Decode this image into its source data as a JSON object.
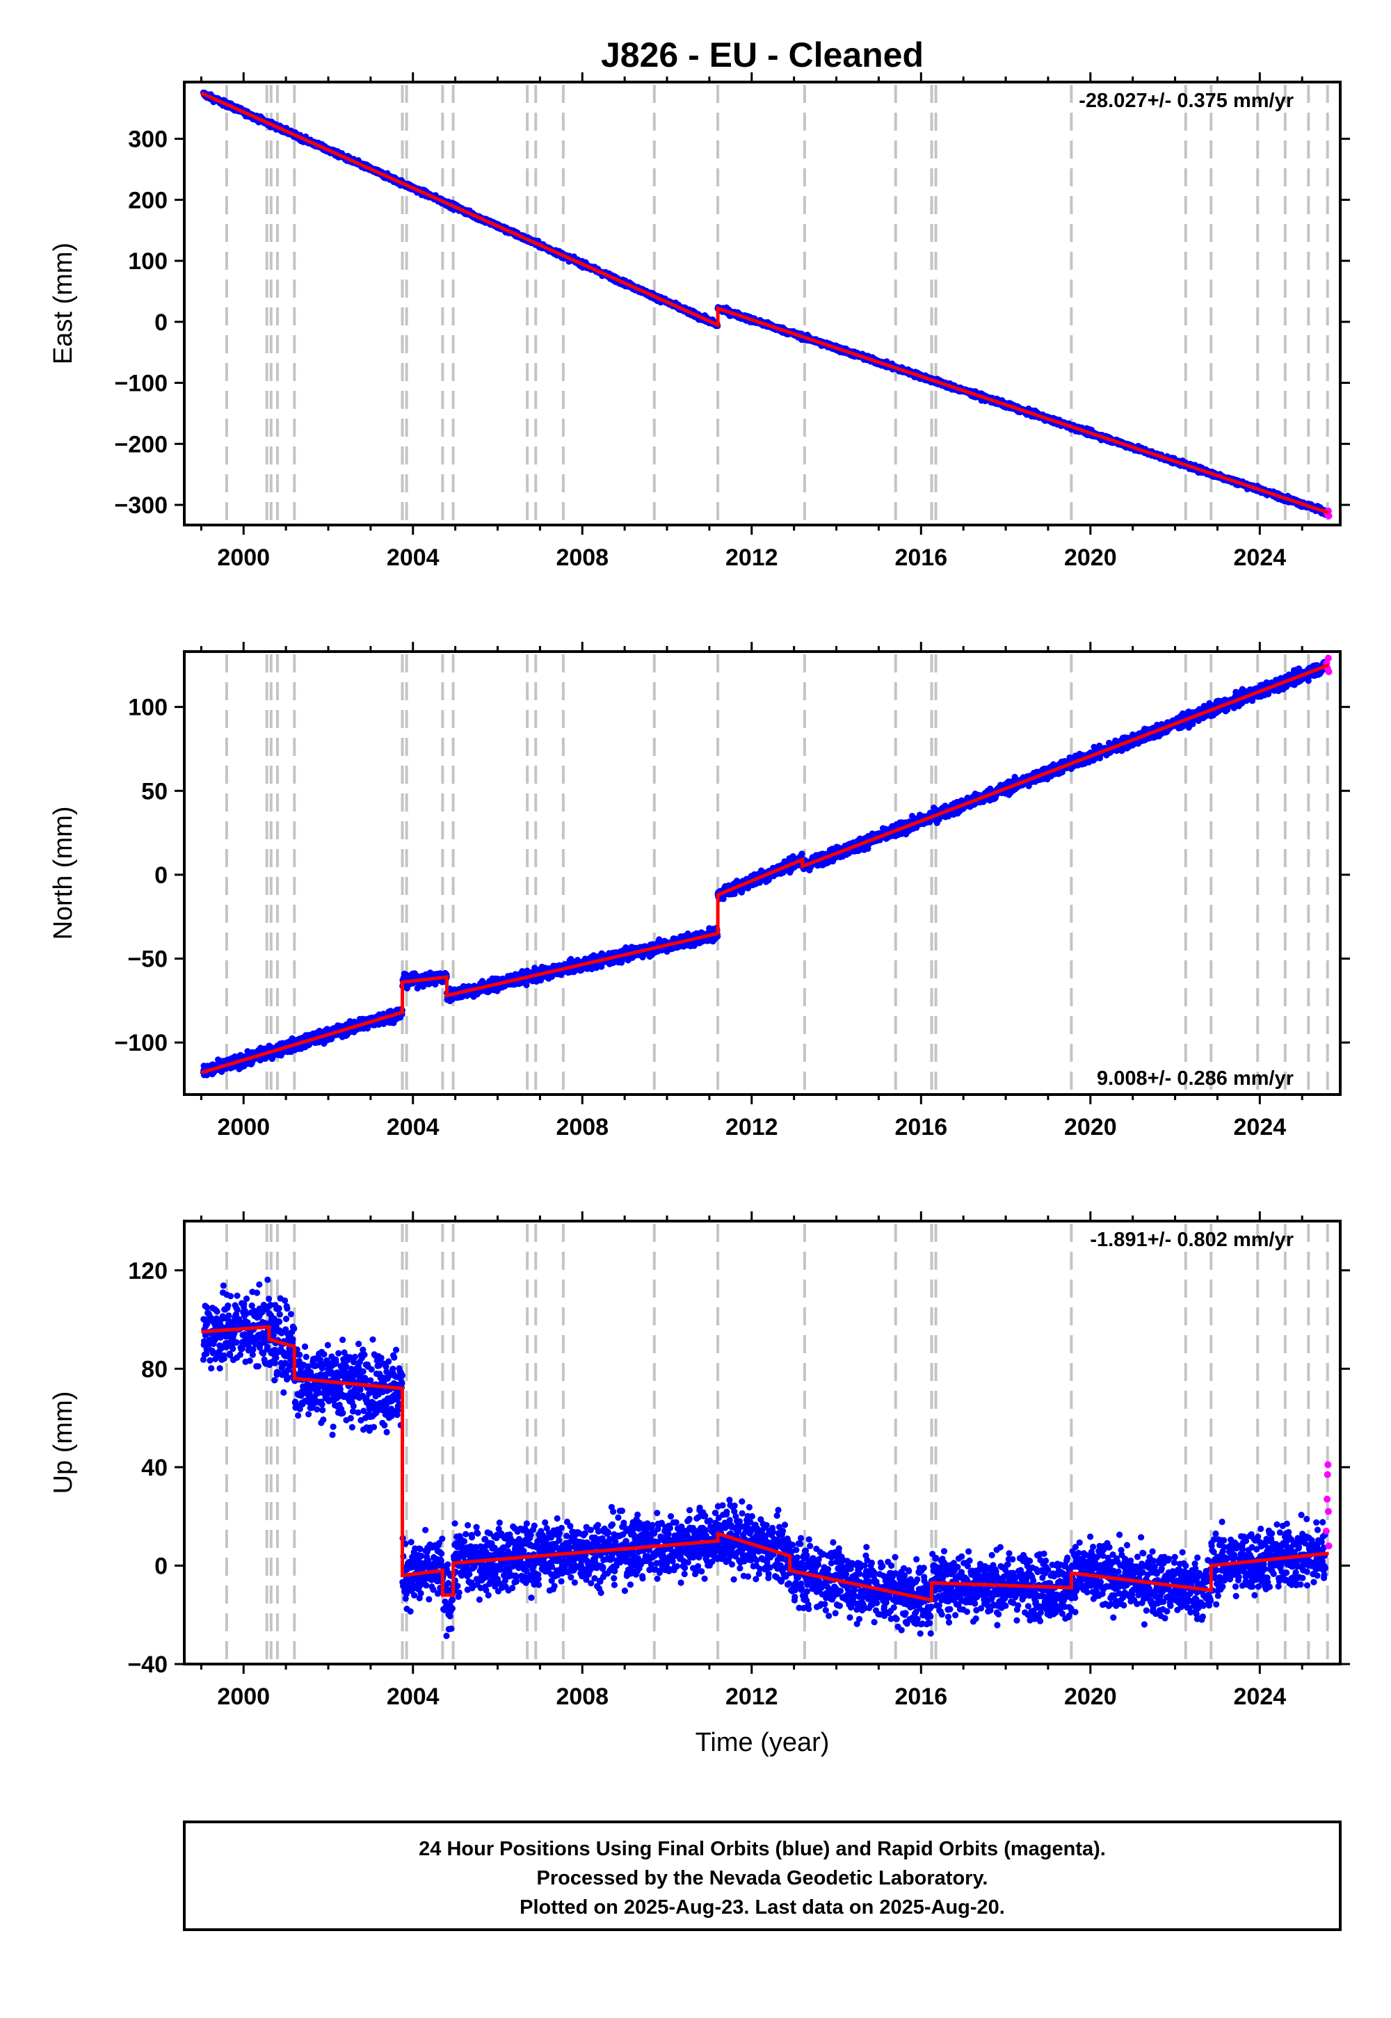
{
  "chart_data": {
    "title": "J826  - EU - Cleaned",
    "x_axis_label": "Time (year)",
    "x_ticks": [
      2000,
      2004,
      2008,
      2012,
      2016,
      2020,
      2024
    ],
    "x_range": [
      1998.6,
      2025.9
    ],
    "equipment_change_years": [
      1999.6,
      2000.55,
      2000.65,
      2000.8,
      2001.2,
      2003.75,
      2003.85,
      2004.7,
      2004.95,
      2006.7,
      2006.9,
      2007.55,
      2009.7,
      2011.2,
      2013.25,
      2015.4,
      2016.25,
      2016.35,
      2019.55,
      2022.25,
      2022.85,
      2023.95,
      2024.6,
      2025.15,
      2025.6
    ],
    "notes": [
      "24 Hour Positions Using Final Orbits (blue) and Rapid Orbits (magenta).",
      "Processed by the Nevada Geodetic Laboratory.",
      "Plotted on 2025-Aug-23. Last data on 2025-Aug-20."
    ],
    "final_orbit_color": "#0000ff",
    "rapid_orbit_color": "#ff00ff",
    "model_color": "#ff0000",
    "panels": [
      {
        "type": "scatter",
        "ylabel": "East (mm)",
        "rate_label": "-28.027+/- 0.375 mm/yr",
        "rate_position": "top-right",
        "ylim": [
          -333,
          393
        ],
        "yticks": [
          300,
          200,
          100,
          0,
          -100,
          -200,
          -300
        ],
        "y_tick_labels": [
          "300",
          "200",
          "100",
          "0",
          "−100",
          "−200",
          "−300"
        ],
        "noise_mm": 3,
        "model": [
          {
            "t0": 1999.0,
            "t1": 2011.2,
            "y0": 375,
            "y1": -5
          },
          {
            "t0": 2011.2,
            "t1": 2025.63,
            "y0": 22,
            "y1": -313
          }
        ],
        "rapid": [
          [
            2025.58,
            -312
          ],
          [
            2025.6,
            -316
          ],
          [
            2025.62,
            -310
          ],
          [
            2025.63,
            -318
          ]
        ]
      },
      {
        "type": "scatter",
        "ylabel": "North (mm)",
        "rate_label": "9.008+/- 0.286 mm/yr",
        "rate_position": "bottom-right",
        "ylim": [
          -131,
          133
        ],
        "yticks": [
          100,
          50,
          0,
          -50,
          -100
        ],
        "y_tick_labels": [
          "100",
          "50",
          "0",
          "−50",
          "−100"
        ],
        "noise_mm": 2.5,
        "model": [
          {
            "t0": 1999.0,
            "t1": 2003.75,
            "y0": -118,
            "y1": -82
          },
          {
            "t0": 2003.75,
            "t1": 2004.8,
            "y0": -64,
            "y1": -61
          },
          {
            "t0": 2004.8,
            "t1": 2011.2,
            "y0": -72,
            "y1": -35
          },
          {
            "t0": 2011.2,
            "t1": 2013.2,
            "y0": -12,
            "y1": 9
          },
          {
            "t0": 2013.2,
            "t1": 2025.63,
            "y0": 5,
            "y1": 125
          }
        ],
        "rapid": [
          [
            2025.58,
            126
          ],
          [
            2025.6,
            123
          ],
          [
            2025.62,
            129
          ],
          [
            2025.63,
            121
          ]
        ]
      },
      {
        "type": "scatter",
        "ylabel": "Up (mm)",
        "rate_label": "-1.891+/- 0.802 mm/yr",
        "rate_position": "top-right",
        "ylim": [
          -40,
          140
        ],
        "yticks": [
          120,
          80,
          40,
          0,
          -40
        ],
        "y_tick_labels": [
          "120",
          "80",
          "40",
          "0",
          "−40"
        ],
        "noise_mm": 9,
        "model": [
          {
            "t0": 1999.0,
            "t1": 2000.6,
            "y0": 95,
            "y1": 97
          },
          {
            "t0": 2000.6,
            "t1": 2001.2,
            "y0": 92,
            "y1": 89
          },
          {
            "t0": 2001.2,
            "t1": 2003.75,
            "y0": 76,
            "y1": 72
          },
          {
            "t0": 2003.75,
            "t1": 2004.7,
            "y0": -4,
            "y1": -2
          },
          {
            "t0": 2004.7,
            "t1": 2004.95,
            "y0": -12,
            "y1": -12
          },
          {
            "t0": 2004.95,
            "t1": 2011.2,
            "y0": 1,
            "y1": 10
          },
          {
            "t0": 2011.2,
            "t1": 2012.9,
            "y0": 13,
            "y1": 4
          },
          {
            "t0": 2012.9,
            "t1": 2016.25,
            "y0": -2,
            "y1": -14
          },
          {
            "t0": 2016.25,
            "t1": 2019.55,
            "y0": -7,
            "y1": -9
          },
          {
            "t0": 2019.55,
            "t1": 2022.85,
            "y0": -3,
            "y1": -10
          },
          {
            "t0": 2022.85,
            "t1": 2025.63,
            "y0": 0,
            "y1": 5
          }
        ],
        "rapid": [
          [
            2025.57,
            14
          ],
          [
            2025.59,
            27
          ],
          [
            2025.6,
            37
          ],
          [
            2025.61,
            41
          ],
          [
            2025.62,
            22
          ],
          [
            2025.63,
            8
          ]
        ]
      }
    ]
  }
}
